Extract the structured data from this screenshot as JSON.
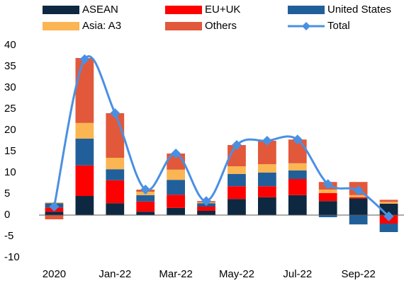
{
  "chart_data": {
    "type": "bar",
    "stacked": true,
    "legend": "top",
    "categories": [
      "2020",
      null,
      "Jan-22",
      null,
      "Mar-22",
      null,
      "May-22",
      null,
      "Jul-22",
      null,
      "Sep-22",
      null
    ],
    "series": [
      {
        "name": "ASEAN",
        "color": "#0e2841",
        "values": [
          0.8,
          4.5,
          2.8,
          0.8,
          1.7,
          1.0,
          3.8,
          4.2,
          4.7,
          3.3,
          3.9,
          2.7
        ]
      },
      {
        "name": "EU+UK",
        "color": "#ff0000",
        "values": [
          1.0,
          7.2,
          5.4,
          2.4,
          3.1,
          1.0,
          3.0,
          2.6,
          3.8,
          1.9,
          0.3,
          -2.0
        ]
      },
      {
        "name": "United States",
        "color": "#215f9a",
        "values": [
          1.0,
          6.3,
          2.6,
          1.5,
          3.5,
          0.8,
          2.9,
          3.2,
          2.0,
          -0.5,
          -2.2,
          -2.0
        ]
      },
      {
        "name": "Asia: A3",
        "color": "#fbb552",
        "values": [
          0.2,
          3.7,
          2.7,
          0.8,
          2.4,
          0.2,
          1.8,
          2.0,
          1.7,
          0.8,
          0.5,
          0.4
        ]
      },
      {
        "name": "Others",
        "color": "#e2583a",
        "values": [
          -1.0,
          15.3,
          10.5,
          0.5,
          3.8,
          0.3,
          5.0,
          5.5,
          5.6,
          1.8,
          3.1,
          0.5
        ]
      },
      {
        "name": "Total",
        "type": "line",
        "color": "#4a90e2",
        "values": [
          2.0,
          36.7,
          24.0,
          6.0,
          14.5,
          3.3,
          16.5,
          17.5,
          17.8,
          7.3,
          5.8,
          -0.3
        ]
      }
    ],
    "ylim": [
      -10,
      40
    ],
    "yticks": [
      -10,
      -5,
      0,
      5,
      10,
      15,
      20,
      25,
      30,
      35,
      40
    ],
    "grid": false
  }
}
